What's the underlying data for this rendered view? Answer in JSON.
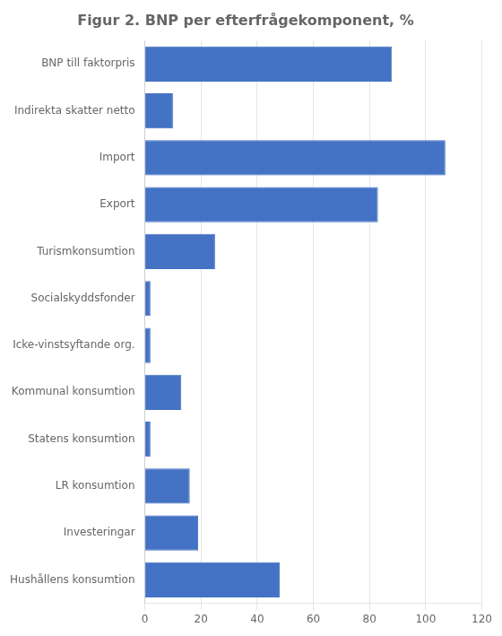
{
  "chart_data": {
    "type": "bar",
    "orientation": "horizontal",
    "title": "Figur 2. BNP per efterfrågekomponent, %",
    "categories": [
      "Hushållens konsumtion",
      "Investeringar",
      "LR konsumtion",
      "Statens konsumtion",
      "Kommunal konsumtion",
      "Icke-vinstsyftande org.",
      "Socialskyddsfonder",
      "Turismkonsumtion",
      "Export",
      "Import",
      "Indirekta skatter netto",
      "BNP till faktorpris"
    ],
    "values": [
      48,
      19,
      16,
      2,
      13,
      2,
      2,
      25,
      83,
      107,
      10,
      88
    ],
    "color": "#4472C4",
    "xlim": [
      0,
      120
    ],
    "xticks": [
      0,
      20,
      40,
      60,
      80,
      100,
      120
    ],
    "grid": true
  }
}
